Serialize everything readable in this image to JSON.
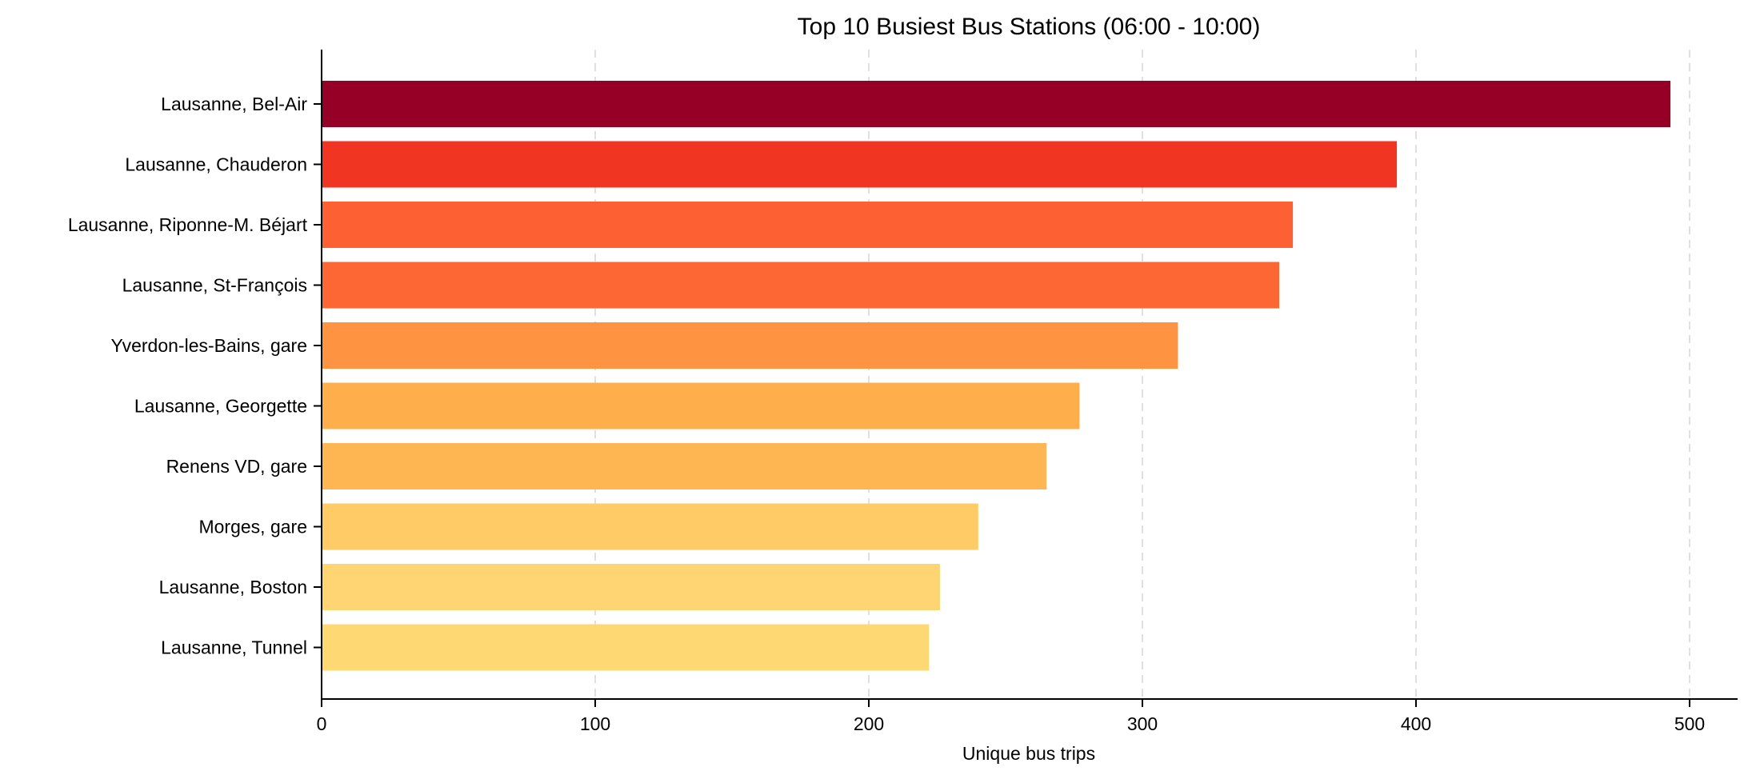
{
  "chart_data": {
    "type": "bar",
    "orientation": "horizontal",
    "title": "Top 10 Busiest Bus Stations (06:00 - 10:00)",
    "xlabel": "Unique bus trips",
    "ylabel": "",
    "xlim": [
      0,
      518
    ],
    "xticks": [
      0,
      100,
      200,
      300,
      400,
      500
    ],
    "grid": {
      "x": true,
      "y": false,
      "style": "dashed"
    },
    "categories": [
      "Lausanne, Bel-Air",
      "Lausanne, Chauderon",
      "Lausanne, Riponne-M. Béjart",
      "Lausanne, St-François",
      "Yverdon-les-Bains, gare",
      "Lausanne, Georgette",
      "Renens VD, gare",
      "Morges, gare",
      "Lausanne, Boston",
      "Lausanne, Tunnel"
    ],
    "values": [
      493,
      393,
      355,
      350,
      313,
      277,
      265,
      240,
      226,
      222
    ],
    "colors": [
      "#960026",
      "#f03523",
      "#fc6033",
      "#fc6733",
      "#fe9441",
      "#feae4b",
      "#feb652",
      "#fecb66",
      "#fed572",
      "#fed873"
    ]
  }
}
